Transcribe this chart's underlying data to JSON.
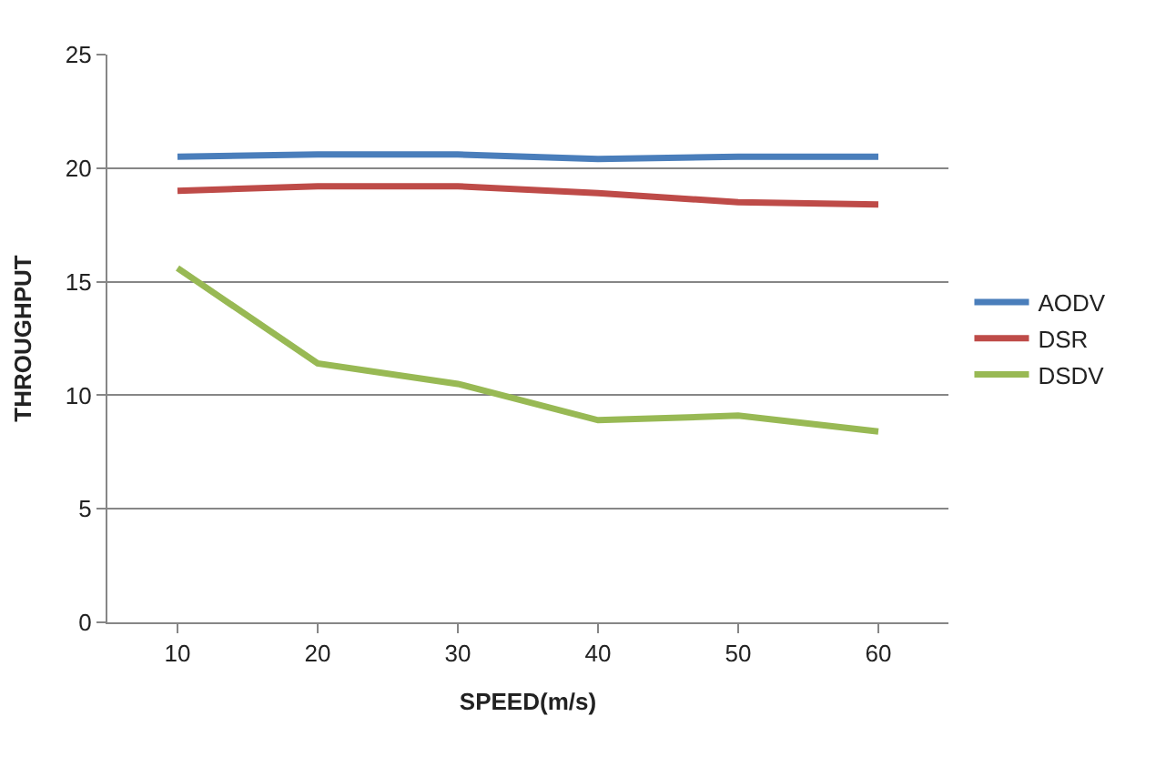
{
  "chart_data": {
    "type": "line",
    "xlabel": "SPEED(m/s)",
    "ylabel": "THROUGHPUT",
    "categories": [
      "10",
      "20",
      "30",
      "40",
      "50",
      "60"
    ],
    "series": [
      {
        "name": "AODV",
        "color": "#4a7ebb",
        "values": [
          20.5,
          20.6,
          20.6,
          20.4,
          20.5,
          20.5
        ]
      },
      {
        "name": "DSR",
        "color": "#be4b48",
        "values": [
          19.0,
          19.2,
          19.2,
          18.9,
          18.5,
          18.4
        ]
      },
      {
        "name": "DSDV",
        "color": "#98b954",
        "values": [
          15.6,
          11.4,
          10.5,
          8.9,
          9.1,
          8.4
        ]
      }
    ],
    "ylim": [
      0,
      25
    ],
    "yticks": [
      0,
      5,
      10,
      15,
      20,
      25
    ],
    "grid": "y",
    "legend": "right",
    "marker": "none",
    "line_style": "solid"
  }
}
